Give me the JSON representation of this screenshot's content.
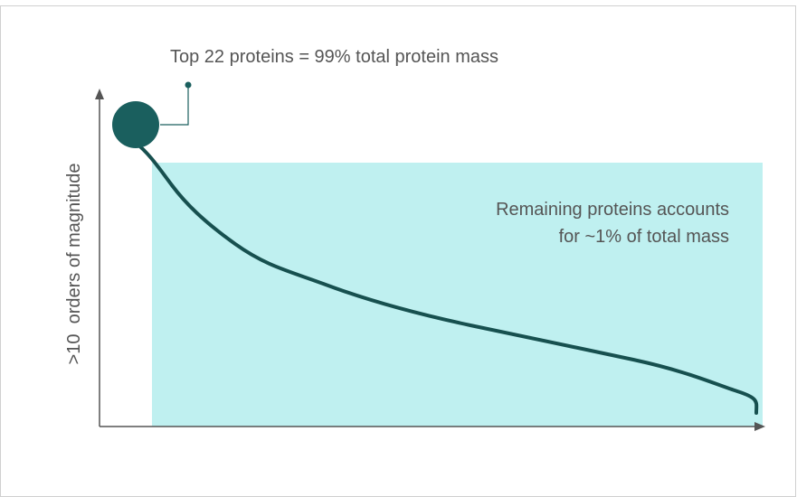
{
  "annotations": {
    "top": "Top 22 proteins = 99% total protein mass",
    "remaining": [
      "Remaining proteins accounts",
      "for ~1% of total mass"
    ]
  },
  "y_axis_label": ">10  orders of magnitude"
}
